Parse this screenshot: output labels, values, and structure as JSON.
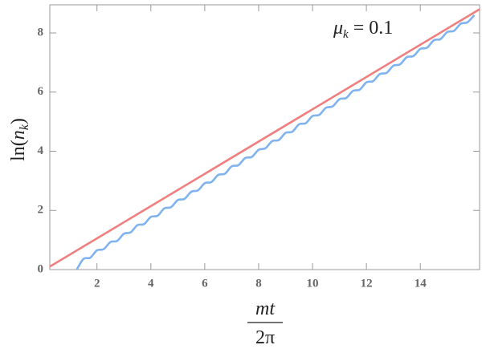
{
  "chart_data": {
    "type": "line",
    "x_label": {
      "numerator": "mt",
      "denominator": "2π"
    },
    "y_label": {
      "prefix": "ln(",
      "var": "n",
      "sub": "k",
      "suffix": ")"
    },
    "annotation": {
      "symbol": "μ",
      "sub": "k",
      "text": " = 0.1"
    },
    "xlim": [
      0.25,
      16.2
    ],
    "ylim": [
      0,
      8.95
    ],
    "xticks": [
      2,
      4,
      6,
      8,
      10,
      12,
      14
    ],
    "yticks": [
      0,
      2,
      4,
      6,
      8
    ],
    "series": [
      {
        "color": "#ef7f7f",
        "x": [
          0.25,
          16.2
        ],
        "values": [
          0.1,
          8.8
        ]
      },
      {
        "color": "#7fb3ef",
        "x": [
          1.25,
          1.5,
          1.75,
          2.0,
          2.25,
          2.5,
          2.75,
          3.0,
          3.25,
          3.5,
          3.75,
          4.0,
          4.25,
          4.5,
          4.75,
          5.0,
          5.25,
          5.5,
          5.75,
          6.0,
          6.25,
          6.5,
          6.75,
          7.0,
          7.25,
          7.5,
          7.75,
          8.0,
          8.25,
          8.5,
          8.75,
          9.0,
          9.25,
          9.5,
          9.75,
          10.0,
          10.25,
          10.5,
          10.75,
          11.0,
          11.25,
          11.5,
          11.75,
          12.0,
          12.25,
          12.5,
          12.75,
          13.0,
          13.25,
          13.5,
          13.75,
          14.0,
          14.25,
          14.5,
          14.75,
          15.0,
          15.25,
          15.5,
          15.75,
          16.0
        ],
        "values": [
          0,
          0.36,
          0.4,
          0.65,
          0.69,
          0.93,
          0.97,
          1.21,
          1.26,
          1.5,
          1.54,
          1.78,
          1.82,
          2.07,
          2.11,
          2.35,
          2.39,
          2.63,
          2.68,
          2.92,
          2.96,
          3.2,
          3.24,
          3.49,
          3.53,
          3.77,
          3.81,
          4.05,
          4.1,
          4.34,
          4.38,
          4.62,
          4.66,
          4.91,
          4.95,
          5.19,
          5.23,
          5.47,
          5.52,
          5.76,
          5.8,
          6.04,
          6.08,
          6.33,
          6.37,
          6.61,
          6.65,
          6.89,
          6.94,
          7.18,
          7.22,
          7.46,
          7.5,
          7.75,
          7.79,
          8.03,
          8.07,
          8.31,
          8.36,
          8.6
        ]
      }
    ]
  }
}
